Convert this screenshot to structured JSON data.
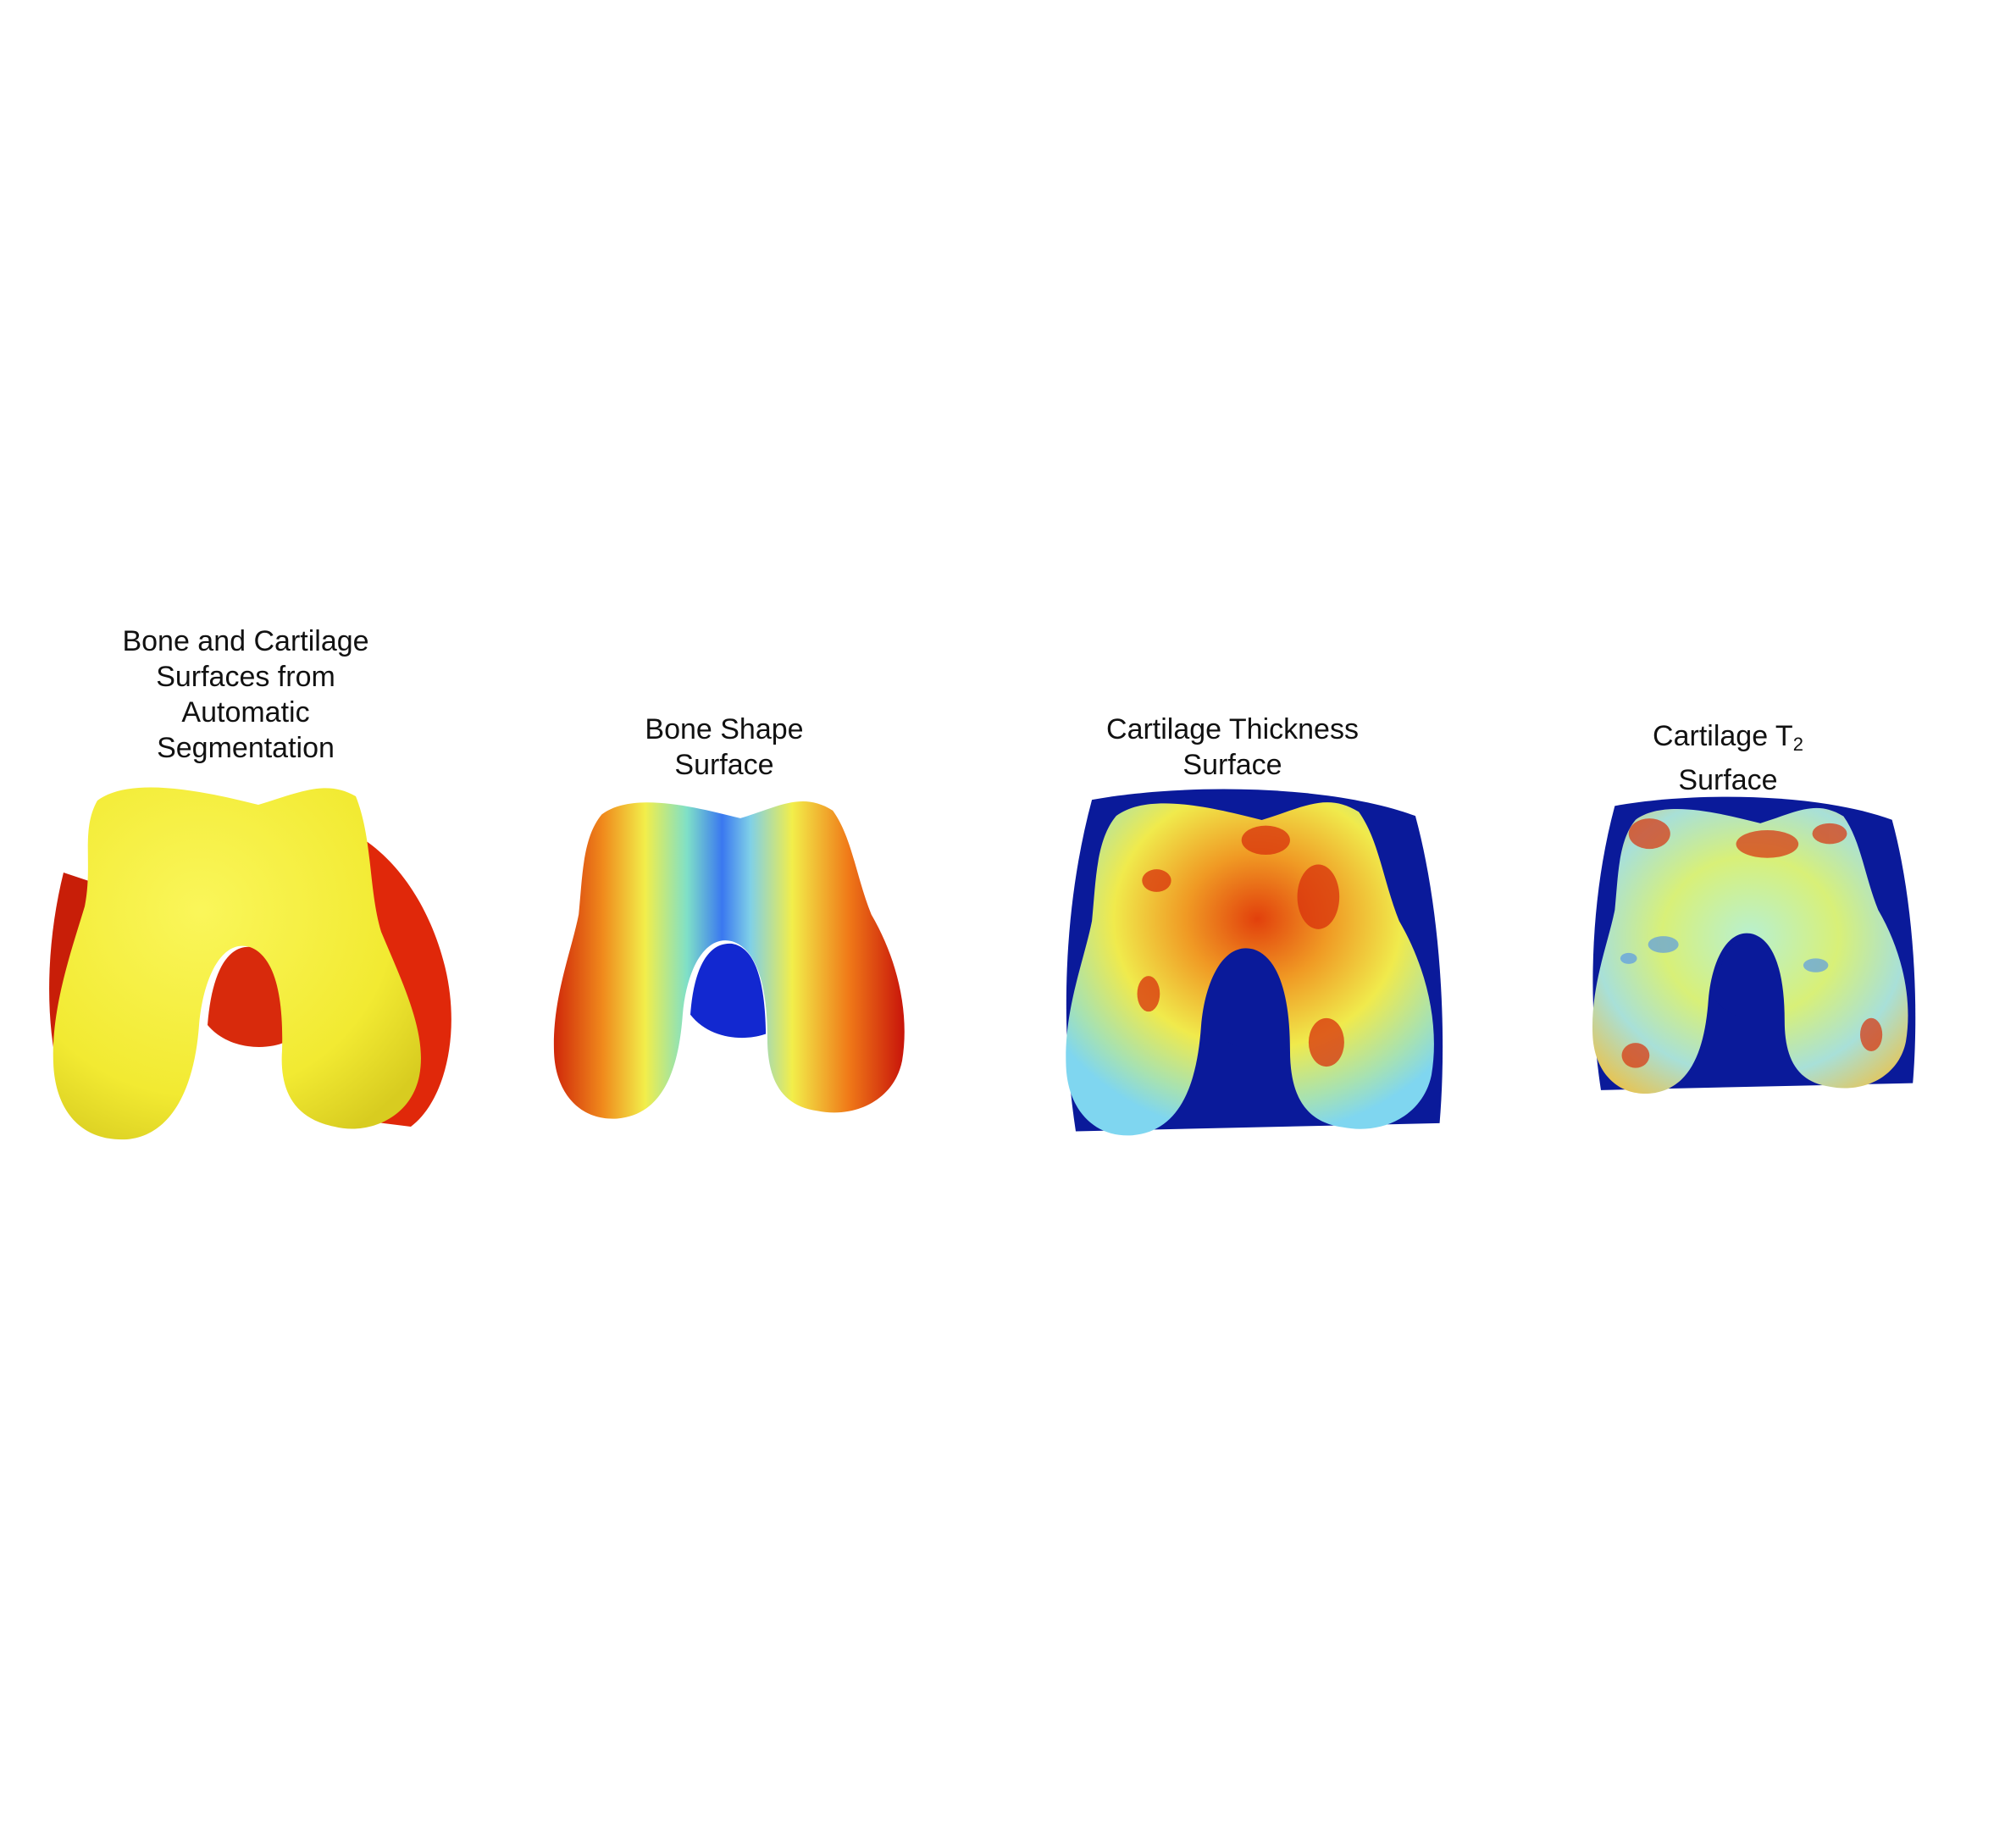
{
  "panels": [
    {
      "id": "segmentation",
      "title_lines": [
        "Bone and Cartilage",
        "Surfaces from",
        "Automatic",
        "Segmentation"
      ],
      "colors": {
        "cartilage": "#f5f03a",
        "bone": "#e0280a"
      }
    },
    {
      "id": "bone-shape",
      "title_lines": [
        "Bone Shape",
        "Surface"
      ],
      "colors": {
        "low": "#1a3cf0",
        "mid": "#f2ee4a",
        "high": "#c8140a"
      }
    },
    {
      "id": "cartilage-thickness",
      "title_lines": [
        "Cartilage Thickness",
        "Surface"
      ],
      "colors": {
        "background": "#0a1a9a",
        "low": "#7fd6f0",
        "mid": "#f0ea4c",
        "high": "#e0380c"
      }
    },
    {
      "id": "cartilage-t2",
      "title_main": "Cartilage T",
      "title_sub": "2",
      "title_line2": "Surface",
      "colors": {
        "background": "#0a1a9a",
        "low": "#6ab8f0",
        "mid": "#d8f078",
        "high": "#d8300c"
      }
    }
  ]
}
